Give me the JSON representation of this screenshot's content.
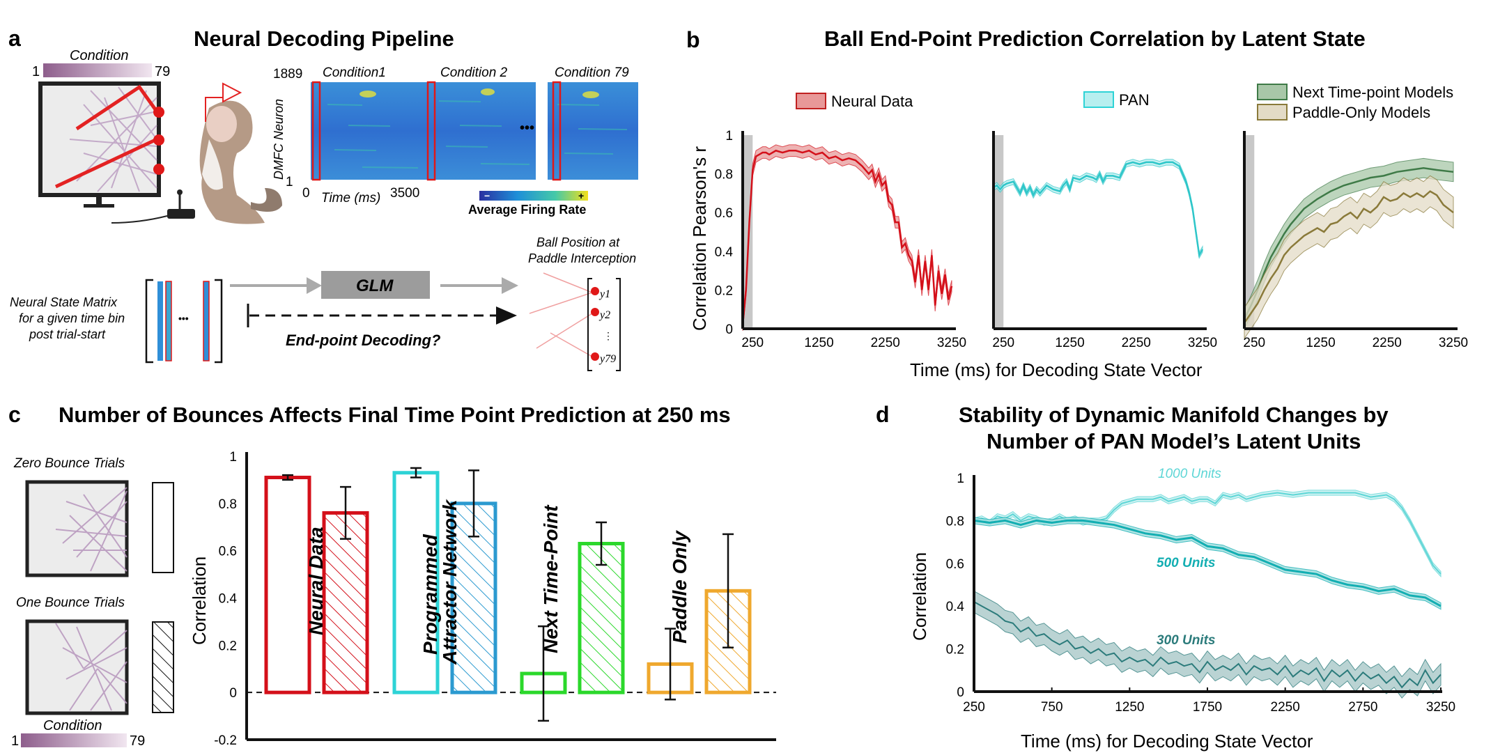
{
  "panel_a": {
    "letter": "a",
    "title": "Neural Decoding Pipeline",
    "condition_label": "Condition",
    "condition_min": "1",
    "condition_max": "79",
    "neuron_axis_label": "DMFC Neuron",
    "neuron_max": "1889",
    "neuron_min": "1",
    "heatmap_titles": [
      "Condition1",
      "Condition 2",
      "Condition 79"
    ],
    "ellipsis": "•••",
    "time_axis_label": "Time (ms)",
    "time_min": "0",
    "time_max": "3500",
    "colorbar_minus": "−",
    "colorbar_plus": "+",
    "colorbar_label": "Average Firing Rate",
    "state_matrix_label_1": "Neural State Matrix",
    "state_matrix_label_2": "for a given time bin",
    "state_matrix_label_3": "post trial-start",
    "matrix_ellipsis": "•••",
    "glm_label": "GLM",
    "decoding_question": "End-point Decoding?",
    "ball_position_label_1": "Ball Position at",
    "ball_position_label_2": "Paddle Interception",
    "vector_entries": [
      "y1",
      "y2",
      "⋮",
      "y79"
    ]
  },
  "panel_b": {
    "letter": "b",
    "title": "Ball End-Point Prediction Correlation by Latent State",
    "ylabel": "Correlation Pearson's r",
    "xlabel": "Time (ms) for Decoding State Vector",
    "yticks": [
      "0",
      "0.2",
      "0.4",
      "0.6",
      "0.8",
      "1"
    ],
    "xticks": [
      "250",
      "1250",
      "2250",
      "3250"
    ],
    "legend_neural": "Neural Data",
    "legend_pan": "PAN",
    "legend_next": "Next Time-point Models",
    "legend_paddle": "Paddle-Only Models"
  },
  "panel_c": {
    "letter": "c",
    "title": "Number of Bounces Affects Final Time Point Prediction at 250 ms",
    "ylabel": "Correlation",
    "yticks": [
      "-0.2",
      "0",
      "0.2",
      "0.4",
      "0.6",
      "0.8",
      "1"
    ],
    "zero_bounce_label": "Zero Bounce Trials",
    "one_bounce_label": "One Bounce Trials",
    "condition_label": "Condition",
    "condition_min": "1",
    "condition_max": "79",
    "group_labels": [
      "Neural Data",
      "Programmed",
      "Attractor Network",
      "Next Time-Point",
      "Paddle Only"
    ]
  },
  "panel_d": {
    "letter": "d",
    "title_line1": "Stability of Dynamic Manifold Changes by",
    "title_line2": "Number of PAN Model’s Latent Units",
    "ylabel": "Correlation",
    "xlabel": "Time (ms) for Decoding State Vector",
    "yticks": [
      "0",
      "0.2",
      "0.4",
      "0.6",
      "0.8",
      "1"
    ],
    "xticks": [
      "250",
      "750",
      "1250",
      "1750",
      "2250",
      "2750",
      "3250"
    ],
    "series_labels": [
      "1000 Units",
      "500 Units",
      "300 Units"
    ]
  },
  "colors": {
    "neural": "#d4101a",
    "pan": "#2ed3d6",
    "next": "#2bd82b",
    "paddle": "#efa82e",
    "next_line": "#3e7a47",
    "paddle_line": "#8a7a3a",
    "d_1000": "#5ed6d6",
    "d_500": "#13aeb2",
    "d_300": "#2b7b7b"
  },
  "chart_data": [
    {
      "type": "line",
      "panel": "b-left",
      "series": [
        {
          "name": "Neural Data",
          "x": [
            100,
            150,
            200,
            250,
            300,
            350,
            400,
            450,
            500,
            600,
            700,
            800,
            900,
            1000,
            1100,
            1200,
            1300,
            1400,
            1500,
            1600,
            1700,
            1800,
            1900,
            2000,
            2050,
            2100,
            2150,
            2200,
            2250,
            2300,
            2350,
            2400,
            2450,
            2500,
            2550,
            2600,
            2650,
            2700,
            2750,
            2800,
            2850,
            2900,
            2950,
            3000,
            3050,
            3100,
            3150,
            3200,
            3250
          ],
          "y": [
            0.02,
            0.2,
            0.55,
            0.82,
            0.89,
            0.9,
            0.91,
            0.91,
            0.9,
            0.92,
            0.91,
            0.92,
            0.92,
            0.91,
            0.92,
            0.9,
            0.91,
            0.88,
            0.89,
            0.87,
            0.88,
            0.87,
            0.84,
            0.8,
            0.82,
            0.76,
            0.8,
            0.74,
            0.76,
            0.66,
            0.64,
            0.55,
            0.55,
            0.42,
            0.44,
            0.38,
            0.35,
            0.24,
            0.38,
            0.2,
            0.35,
            0.2,
            0.38,
            0.12,
            0.3,
            0.18,
            0.28,
            0.15,
            0.22
          ]
        }
      ],
      "band": 0.03,
      "xlim": [
        100,
        3250
      ],
      "ylim": [
        0,
        1
      ],
      "shaded_x": [
        100,
        250
      ]
    },
    {
      "type": "line",
      "panel": "b-middle",
      "series": [
        {
          "name": "PAN",
          "x": [
            100,
            150,
            200,
            250,
            300,
            400,
            500,
            550,
            600,
            650,
            700,
            750,
            800,
            900,
            1000,
            1100,
            1150,
            1200,
            1250,
            1300,
            1400,
            1500,
            1600,
            1650,
            1700,
            1750,
            1800,
            1900,
            2000,
            2100,
            2200,
            2300,
            2400,
            2500,
            2600,
            2700,
            2800,
            2900,
            3000,
            3050,
            3100,
            3150,
            3200,
            3250
          ],
          "y": [
            0.73,
            0.74,
            0.72,
            0.74,
            0.75,
            0.76,
            0.7,
            0.74,
            0.7,
            0.73,
            0.69,
            0.72,
            0.7,
            0.74,
            0.72,
            0.71,
            0.74,
            0.76,
            0.72,
            0.78,
            0.77,
            0.79,
            0.78,
            0.77,
            0.8,
            0.76,
            0.79,
            0.79,
            0.78,
            0.85,
            0.86,
            0.85,
            0.86,
            0.86,
            0.85,
            0.86,
            0.86,
            0.84,
            0.76,
            0.7,
            0.62,
            0.5,
            0.38,
            0.41
          ]
        }
      ],
      "band": 0.015,
      "xlim": [
        100,
        3250
      ],
      "ylim": [
        0,
        1
      ],
      "shaded_x": [
        100,
        250
      ]
    },
    {
      "type": "line",
      "panel": "b-right",
      "series": [
        {
          "name": "Next Time-point Models",
          "x": [
            100,
            200,
            300,
            400,
            500,
            600,
            700,
            800,
            900,
            1000,
            1200,
            1400,
            1600,
            1800,
            2000,
            2200,
            2400,
            2600,
            2800,
            3000,
            3250
          ],
          "y": [
            0.05,
            0.12,
            0.2,
            0.29,
            0.37,
            0.43,
            0.49,
            0.54,
            0.58,
            0.62,
            0.67,
            0.71,
            0.74,
            0.76,
            0.78,
            0.79,
            0.81,
            0.82,
            0.83,
            0.82,
            0.81
          ],
          "band": 0.05
        },
        {
          "name": "Paddle-Only Models",
          "x": [
            100,
            200,
            300,
            400,
            500,
            600,
            700,
            800,
            900,
            1000,
            1100,
            1200,
            1300,
            1400,
            1500,
            1600,
            1700,
            1800,
            1900,
            2000,
            2100,
            2200,
            2300,
            2400,
            2500,
            2600,
            2700,
            2800,
            2900,
            3000,
            3100,
            3250
          ],
          "y": [
            0.03,
            0.08,
            0.13,
            0.2,
            0.26,
            0.31,
            0.38,
            0.42,
            0.45,
            0.48,
            0.5,
            0.52,
            0.5,
            0.54,
            0.55,
            0.58,
            0.6,
            0.57,
            0.62,
            0.6,
            0.63,
            0.68,
            0.66,
            0.67,
            0.7,
            0.68,
            0.7,
            0.68,
            0.71,
            0.69,
            0.64,
            0.6
          ],
          "band": 0.08
        }
      ],
      "xlim": [
        100,
        3250
      ],
      "ylim": [
        0,
        1
      ],
      "shaded_x": [
        100,
        250
      ]
    },
    {
      "type": "bar",
      "panel": "c",
      "categories": [
        "Neural Data zero-bounce",
        "Neural Data one-bounce",
        "PAN zero-bounce",
        "PAN one-bounce",
        "Next Time-Point zero-bounce",
        "Next Time-Point one-bounce",
        "Paddle Only zero-bounce",
        "Paddle Only one-bounce"
      ],
      "values": [
        0.91,
        0.76,
        0.93,
        0.8,
        0.08,
        0.63,
        0.12,
        0.43
      ],
      "error": [
        0.01,
        0.11,
        0.02,
        0.14,
        0.2,
        0.09,
        0.15,
        0.24
      ],
      "ylim": [
        -0.2,
        1
      ]
    },
    {
      "type": "line",
      "panel": "d",
      "series": [
        {
          "name": "1000 Units",
          "x": [
            250,
            300,
            350,
            400,
            450,
            500,
            550,
            600,
            650,
            700,
            750,
            800,
            850,
            900,
            950,
            1000,
            1050,
            1100,
            1150,
            1200,
            1250,
            1300,
            1350,
            1400,
            1450,
            1500,
            1550,
            1600,
            1650,
            1700,
            1750,
            1800,
            1850,
            1900,
            1950,
            2000,
            2100,
            2200,
            2300,
            2400,
            2500,
            2600,
            2700,
            2800,
            2900,
            2950,
            3000,
            3050,
            3100,
            3150,
            3200,
            3250
          ],
          "y": [
            0.8,
            0.81,
            0.79,
            0.82,
            0.81,
            0.83,
            0.8,
            0.82,
            0.81,
            0.79,
            0.8,
            0.82,
            0.8,
            0.81,
            0.79,
            0.8,
            0.8,
            0.81,
            0.85,
            0.88,
            0.89,
            0.9,
            0.9,
            0.9,
            0.91,
            0.89,
            0.9,
            0.91,
            0.89,
            0.9,
            0.9,
            0.88,
            0.92,
            0.91,
            0.92,
            0.9,
            0.92,
            0.93,
            0.92,
            0.93,
            0.93,
            0.93,
            0.93,
            0.91,
            0.92,
            0.9,
            0.86,
            0.8,
            0.73,
            0.66,
            0.59,
            0.55
          ],
          "band": 0.012
        },
        {
          "name": "500 Units",
          "x": [
            250,
            350,
            450,
            550,
            650,
            750,
            850,
            950,
            1050,
            1150,
            1250,
            1350,
            1450,
            1550,
            1650,
            1750,
            1850,
            1950,
            2050,
            2150,
            2250,
            2350,
            2450,
            2550,
            2650,
            2750,
            2850,
            2950,
            3050,
            3150,
            3250
          ],
          "y": [
            0.8,
            0.79,
            0.8,
            0.78,
            0.8,
            0.79,
            0.8,
            0.8,
            0.79,
            0.78,
            0.76,
            0.74,
            0.73,
            0.71,
            0.72,
            0.68,
            0.67,
            0.64,
            0.63,
            0.6,
            0.57,
            0.56,
            0.55,
            0.52,
            0.5,
            0.49,
            0.47,
            0.48,
            0.45,
            0.44,
            0.4
          ],
          "band": 0.015
        },
        {
          "name": "300 Units",
          "x": [
            250,
            300,
            350,
            400,
            450,
            500,
            550,
            600,
            650,
            700,
            750,
            800,
            850,
            900,
            950,
            1000,
            1050,
            1100,
            1150,
            1200,
            1250,
            1300,
            1350,
            1400,
            1450,
            1500,
            1550,
            1600,
            1650,
            1700,
            1750,
            1800,
            1850,
            1900,
            1950,
            2000,
            2050,
            2100,
            2150,
            2200,
            2250,
            2300,
            2350,
            2400,
            2450,
            2500,
            2550,
            2600,
            2650,
            2700,
            2750,
            2800,
            2850,
            2900,
            2950,
            3000,
            3050,
            3100,
            3150,
            3200,
            3250
          ],
          "y": [
            0.42,
            0.4,
            0.38,
            0.36,
            0.33,
            0.32,
            0.28,
            0.3,
            0.26,
            0.27,
            0.24,
            0.22,
            0.24,
            0.2,
            0.21,
            0.18,
            0.2,
            0.17,
            0.18,
            0.14,
            0.16,
            0.14,
            0.15,
            0.12,
            0.16,
            0.13,
            0.14,
            0.12,
            0.13,
            0.09,
            0.14,
            0.1,
            0.12,
            0.1,
            0.13,
            0.08,
            0.12,
            0.1,
            0.11,
            0.08,
            0.12,
            0.07,
            0.1,
            0.08,
            0.11,
            0.05,
            0.1,
            0.07,
            0.1,
            0.05,
            0.09,
            0.06,
            0.08,
            0.04,
            0.07,
            0.02,
            0.06,
            0.03,
            0.1,
            0.04,
            0.08
          ],
          "band": 0.05
        }
      ],
      "xlim": [
        250,
        3250
      ],
      "ylim": [
        0,
        1
      ]
    }
  ]
}
